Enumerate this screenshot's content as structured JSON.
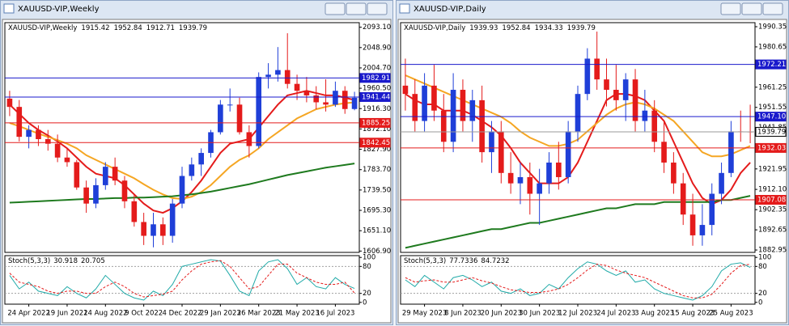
{
  "chart_data": [
    {
      "type": "candlestick",
      "title": "XAUUSD-VIP,Weekly",
      "categories": [
        null,
        null,
        "24 Apr 2022",
        null,
        null,
        null,
        "19 Jun 2022",
        null,
        null,
        null,
        "14 Aug 2022",
        null,
        null,
        null,
        "9 Oct 2022",
        null,
        null,
        null,
        "4 Dec 2022",
        null,
        null,
        null,
        "29 Jan 2023",
        null,
        null,
        null,
        "26 Mar 2023",
        null,
        null,
        null,
        "21 May 2023",
        null,
        null,
        null,
        "16 Jul 2023",
        null,
        null
      ],
      "ohlc": [
        [
          1938,
          1955,
          1900,
          1920
        ],
        [
          1920,
          1935,
          1845,
          1855
        ],
        [
          1855,
          1880,
          1830,
          1870
        ],
        [
          1870,
          1880,
          1835,
          1850
        ],
        [
          1850,
          1870,
          1825,
          1840
        ],
        [
          1840,
          1860,
          1800,
          1810
        ],
        [
          1810,
          1830,
          1790,
          1800
        ],
        [
          1800,
          1805,
          1740,
          1745
        ],
        [
          1745,
          1760,
          1690,
          1710
        ],
        [
          1710,
          1765,
          1700,
          1750
        ],
        [
          1750,
          1800,
          1740,
          1790
        ],
        [
          1790,
          1810,
          1750,
          1760
        ],
        [
          1760,
          1770,
          1700,
          1715
        ],
        [
          1715,
          1730,
          1660,
          1670
        ],
        [
          1670,
          1690,
          1620,
          1640
        ],
        [
          1640,
          1690,
          1615,
          1665
        ],
        [
          1665,
          1680,
          1620,
          1640
        ],
        [
          1640,
          1720,
          1625,
          1710
        ],
        [
          1710,
          1790,
          1700,
          1770
        ],
        [
          1770,
          1810,
          1760,
          1795
        ],
        [
          1795,
          1830,
          1770,
          1820
        ],
        [
          1820,
          1870,
          1810,
          1865
        ],
        [
          1865,
          1935,
          1860,
          1925
        ],
        [
          1925,
          1960,
          1910,
          1925
        ],
        [
          1925,
          1940,
          1860,
          1865
        ],
        [
          1865,
          1880,
          1810,
          1835
        ],
        [
          1835,
          1995,
          1830,
          1985
        ],
        [
          1985,
          2015,
          1960,
          1990
        ],
        [
          1990,
          2050,
          1975,
          2000
        ],
        [
          2000,
          2080,
          1960,
          1970
        ],
        [
          1970,
          1990,
          1935,
          1955
        ],
        [
          1955,
          1985,
          1930,
          1945
        ],
        [
          1945,
          1965,
          1915,
          1930
        ],
        [
          1930,
          1980,
          1910,
          1925
        ],
        [
          1925,
          1975,
          1920,
          1955
        ],
        [
          1955,
          1965,
          1905,
          1915.42
        ],
        [
          1915.42,
          1952.84,
          1912.71,
          1939.79
        ]
      ],
      "bull_color": "#1f3fd8",
      "bear_color": "#e41b1b",
      "series": [
        {
          "color": "#e41b1b",
          "values": [
            1925,
            1905,
            1885,
            1870,
            1858,
            1845,
            1830,
            1810,
            1790,
            1775,
            1770,
            1765,
            1750,
            1730,
            1710,
            1695,
            1690,
            1700,
            1715,
            1735,
            1760,
            1790,
            1820,
            1840,
            1845,
            1850,
            1875,
            1900,
            1925,
            1945,
            1950,
            1955,
            1950,
            1945,
            1945,
            1940,
            1935
          ]
        },
        {
          "color": "#f5a623",
          "values": [
            1885,
            1878,
            1870,
            1862,
            1855,
            1848,
            1840,
            1830,
            1815,
            1805,
            1795,
            1785,
            1775,
            1765,
            1752,
            1740,
            1730,
            1722,
            1720,
            1725,
            1735,
            1750,
            1770,
            1790,
            1805,
            1815,
            1830,
            1850,
            1865,
            1880,
            1895,
            1905,
            1915,
            1920,
            1925,
            1928,
            1930
          ]
        },
        {
          "color": "#1e7a1e",
          "values": [
            1712,
            1713,
            1714,
            1715,
            1716,
            1717,
            1718,
            1719,
            1720,
            1720,
            1721,
            1722,
            1722,
            1723,
            1723,
            1724,
            1725,
            1726,
            1728,
            1730,
            1733,
            1736,
            1740,
            1744,
            1748,
            1752,
            1757,
            1762,
            1767,
            1772,
            1776,
            1780,
            1784,
            1788,
            1791,
            1794,
            1797
          ]
        }
      ],
      "ylim": [
        1604,
        2103
      ],
      "yticks": [
        {
          "value": 2093.1,
          "label": "2093.10"
        },
        {
          "value": 2048.9,
          "label": "2048.90"
        },
        {
          "value": 2004.7,
          "label": "2004.70"
        },
        {
          "value": 1960.5,
          "label": "1960.50"
        },
        {
          "value": 1916.3,
          "label": "1916.30"
        },
        {
          "value": 1872.1,
          "label": "1872.10"
        },
        {
          "value": 1827.9,
          "label": "1827.90"
        },
        {
          "value": 1783.7,
          "label": "1783.70"
        },
        {
          "value": 1739.5,
          "label": "1739.50"
        },
        {
          "value": 1695.3,
          "label": "1695.30"
        },
        {
          "value": 1651.1,
          "label": "1651.10"
        },
        {
          "value": 1606.9,
          "label": "1606.90"
        }
      ],
      "hlines": [
        {
          "value": 1982.91,
          "color": "#1a1acc",
          "text_color": "#ffffff"
        },
        {
          "value": 1941.44,
          "color": "#1a1acc",
          "text_color": "#ffffff"
        },
        {
          "value": 1885.25,
          "color": "#e41b1b",
          "text_color": "#ffffff"
        },
        {
          "value": 1842.45,
          "color": "#e41b1b",
          "text_color": "#ffffff"
        }
      ],
      "stochastic": {
        "label": "Stoch(5,3,3)",
        "ylim": [
          -4,
          104
        ],
        "yticks": [
          100,
          80,
          20,
          0
        ],
        "series": [
          {
            "color": "#20aaa8",
            "dashed": false,
            "values": [
              60,
              30,
              45,
              25,
              20,
              15,
              35,
              20,
              10,
              30,
              60,
              40,
              20,
              10,
              5,
              25,
              15,
              40,
              80,
              85,
              90,
              95,
              92,
              60,
              25,
              15,
              70,
              90,
              95,
              75,
              40,
              55,
              35,
              30,
              55,
              40,
              30.918
            ]
          },
          {
            "color": "#e41b1b",
            "dashed": true,
            "values": [
              65,
              45,
              40,
              35,
              25,
              20,
              25,
              25,
              20,
              20,
              35,
              45,
              35,
              20,
              12,
              15,
              18,
              25,
              50,
              70,
              85,
              90,
              93,
              80,
              55,
              30,
              35,
              60,
              85,
              85,
              65,
              55,
              45,
              40,
              40,
              45,
              20.705
            ]
          }
        ]
      }
    },
    {
      "type": "candlestick",
      "title": "XAUUSD-VIP,Daily",
      "categories": [
        null,
        null,
        "29 May 2023",
        null,
        null,
        null,
        "8 Jun 2023",
        null,
        null,
        null,
        "20 Jun 2023",
        null,
        null,
        null,
        "30 Jun 2023",
        null,
        null,
        null,
        "12 Jul 2023",
        null,
        null,
        null,
        "24 Jul 2023",
        null,
        null,
        null,
        "3 Aug 2023",
        null,
        null,
        null,
        "15 Aug 2023",
        null,
        null,
        null,
        "25 Aug 2023",
        null,
        null
      ],
      "ohlc": [
        [
          1962,
          1975,
          1950,
          1958
        ],
        [
          1958,
          1965,
          1940,
          1945
        ],
        [
          1945,
          1968,
          1940,
          1962
        ],
        [
          1962,
          1972,
          1945,
          1950
        ],
        [
          1950,
          1958,
          1930,
          1935
        ],
        [
          1935,
          1968,
          1930,
          1960
        ],
        [
          1960,
          1965,
          1940,
          1945
        ],
        [
          1945,
          1960,
          1935,
          1955
        ],
        [
          1955,
          1962,
          1925,
          1930
        ],
        [
          1930,
          1945,
          1920,
          1940
        ],
        [
          1940,
          1945,
          1915,
          1920
        ],
        [
          1920,
          1930,
          1910,
          1915
        ],
        [
          1915,
          1925,
          1905,
          1918
        ],
        [
          1918,
          1925,
          1900,
          1910
        ],
        [
          1910,
          1922,
          1895,
          1915
        ],
        [
          1915,
          1930,
          1910,
          1925
        ],
        [
          1925,
          1935,
          1912,
          1918
        ],
        [
          1918,
          1945,
          1915,
          1940
        ],
        [
          1940,
          1962,
          1935,
          1958
        ],
        [
          1958,
          1980,
          1955,
          1975
        ],
        [
          1975,
          1988,
          1960,
          1965
        ],
        [
          1965,
          1975,
          1952,
          1960
        ],
        [
          1960,
          1972,
          1950,
          1955
        ],
        [
          1955,
          1968,
          1945,
          1965
        ],
        [
          1965,
          1970,
          1940,
          1945
        ],
        [
          1945,
          1960,
          1940,
          1950
        ],
        [
          1950,
          1955,
          1930,
          1935
        ],
        [
          1935,
          1945,
          1920,
          1925
        ],
        [
          1925,
          1930,
          1910,
          1915
        ],
        [
          1915,
          1920,
          1895,
          1900
        ],
        [
          1900,
          1910,
          1885,
          1890
        ],
        [
          1890,
          1905,
          1885,
          1895
        ],
        [
          1895,
          1915,
          1890,
          1910
        ],
        [
          1910,
          1925,
          1905,
          1920
        ],
        [
          1920,
          1945,
          1918,
          1940
        ],
        [
          1940,
          1950,
          1935,
          1939.93
        ],
        [
          1939.93,
          1952.84,
          1934.33,
          1939.79
        ]
      ],
      "bull_color": "#1f3fd8",
      "bear_color": "#e41b1b",
      "series": [
        {
          "color": "#e41b1b",
          "values": [
            1958,
            1955,
            1953,
            1953,
            1950,
            1950,
            1950,
            1948,
            1945,
            1942,
            1938,
            1932,
            1925,
            1920,
            1915,
            1915,
            1915,
            1918,
            1925,
            1935,
            1945,
            1955,
            1958,
            1958,
            1957,
            1955,
            1950,
            1945,
            1935,
            1925,
            1915,
            1908,
            1905,
            1907,
            1912,
            1920,
            1925
          ]
        },
        {
          "color": "#f5a623",
          "values": [
            1967,
            1965,
            1963,
            1961,
            1959,
            1957,
            1955,
            1953,
            1951,
            1949,
            1947,
            1944,
            1940,
            1937,
            1935,
            1933,
            1933,
            1934,
            1936,
            1940,
            1944,
            1948,
            1951,
            1953,
            1954,
            1953,
            1951,
            1948,
            1945,
            1940,
            1935,
            1930,
            1928,
            1928,
            1929,
            1931,
            1933
          ]
        },
        {
          "color": "#1e7a1e",
          "values": [
            1884,
            1885,
            1886,
            1887,
            1888,
            1889,
            1890,
            1891,
            1892,
            1893,
            1893,
            1894,
            1895,
            1896,
            1896,
            1897,
            1898,
            1899,
            1900,
            1901,
            1902,
            1903,
            1903,
            1904,
            1905,
            1905,
            1905,
            1906,
            1906,
            1906,
            1906,
            1906,
            1906,
            1907,
            1907,
            1908,
            1909
          ]
        }
      ],
      "ylim": [
        1881.8,
        1992.3
      ],
      "yticks": [
        1990.35,
        1980.65,
        1961.25,
        1951.55,
        1941.85,
        1921.95,
        {
          "value": 1912.1,
          "label": "1912.10"
        },
        1902.35,
        1892.65,
        1882.95
      ],
      "hlines": [
        {
          "value": 1972.21,
          "color": "#1a1acc",
          "text_color": "#ffffff"
        },
        {
          "value": 1947.1,
          "label": "1947.10",
          "color": "#1a1acc",
          "text_color": "#ffffff"
        },
        {
          "value": 1939.79,
          "color": "#ffffff",
          "text_color": "#000000"
        },
        {
          "value": 1932.03,
          "color": "#e41b1b",
          "text_color": "#ffffff"
        },
        {
          "value": 1907.08,
          "color": "#e41b1b",
          "text_color": "#ffffff"
        }
      ],
      "stochastic": {
        "label": "Stoch(5,3,3)",
        "ylim": [
          -4,
          104
        ],
        "yticks": [
          100,
          80,
          20,
          0
        ],
        "series": [
          {
            "color": "#20aaa8",
            "dashed": false,
            "values": [
              50,
              35,
              60,
              45,
              30,
              55,
              60,
              50,
              35,
              45,
              25,
              20,
              30,
              15,
              20,
              40,
              30,
              55,
              75,
              90,
              85,
              70,
              60,
              70,
              45,
              50,
              30,
              20,
              15,
              10,
              5,
              15,
              35,
              70,
              85,
              88,
              77.7336
            ]
          },
          {
            "color": "#e41b1b",
            "dashed": true,
            "values": [
              55,
              45,
              48,
              50,
              45,
              45,
              50,
              55,
              48,
              43,
              35,
              28,
              25,
              22,
              22,
              25,
              30,
              40,
              55,
              72,
              85,
              82,
              72,
              65,
              60,
              55,
              45,
              35,
              25,
              15,
              10,
              10,
              18,
              40,
              65,
              82,
              84.7232
            ]
          }
        ]
      }
    }
  ]
}
